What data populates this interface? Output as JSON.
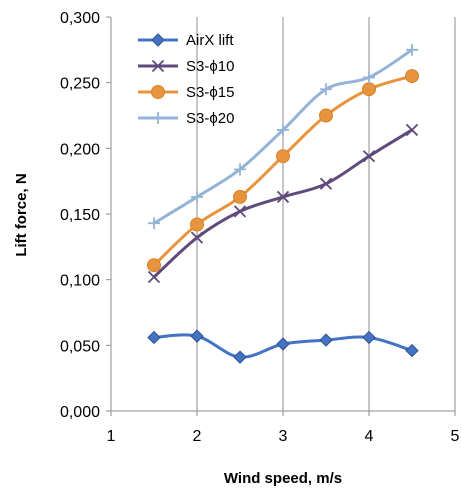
{
  "chart_data": {
    "type": "line",
    "xlabel": "Wind speed, m/s",
    "ylabel": "Lift  force, N",
    "xlim": [
      1,
      5
    ],
    "ylim": [
      0,
      0.3
    ],
    "x_ticks": [
      "1",
      "2",
      "3",
      "4",
      "5"
    ],
    "y_ticks": [
      "0,000",
      "0,050",
      "0,100",
      "0,150",
      "0,200",
      "0,250",
      "0,300"
    ],
    "grid": "vertical",
    "legend_position": "top-left",
    "x": [
      1.5,
      2.0,
      2.5,
      3.0,
      3.5,
      4.0,
      4.5
    ],
    "series": [
      {
        "name": "AirX lift",
        "values": [
          0.056,
          0.057,
          0.041,
          0.051,
          0.054,
          0.056,
          0.046
        ],
        "color": "#4472C4",
        "marker": "diamond"
      },
      {
        "name": "S3-ϕ10",
        "values": [
          0.102,
          0.132,
          0.152,
          0.163,
          0.173,
          0.194,
          0.214
        ],
        "color": "#604A7B",
        "marker": "x"
      },
      {
        "name": "S3-ϕ15",
        "values": [
          0.111,
          0.142,
          0.163,
          0.194,
          0.225,
          0.245,
          0.255
        ],
        "color": "#E6953E",
        "marker": "circle"
      },
      {
        "name": "S3-ϕ20",
        "values": [
          0.143,
          0.163,
          0.184,
          0.214,
          0.245,
          0.254,
          0.275
        ],
        "color": "#95B3D7",
        "marker": "plus"
      }
    ]
  }
}
